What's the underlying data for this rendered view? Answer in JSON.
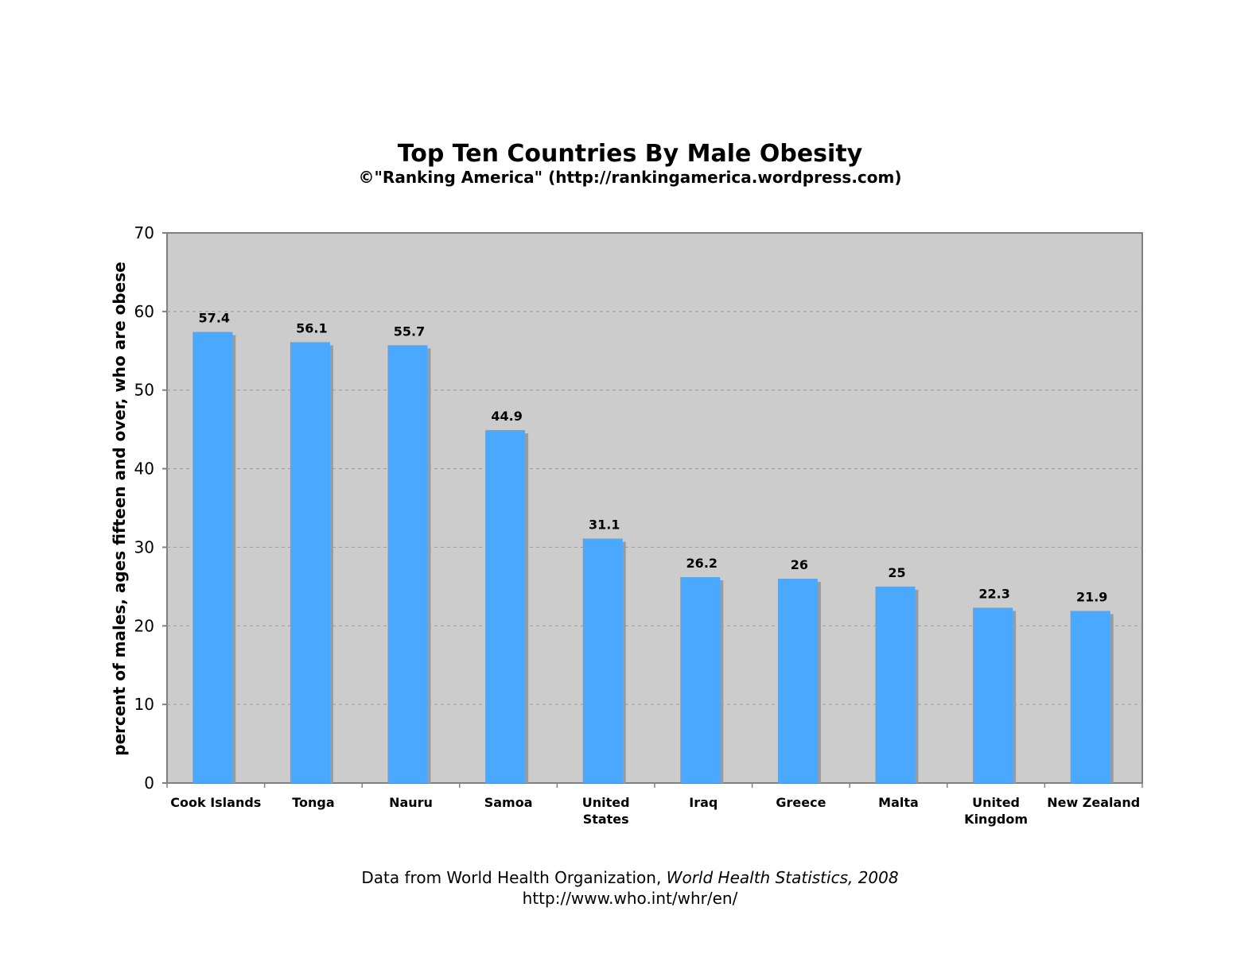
{
  "chart_data": {
    "type": "bar",
    "title": "Top Ten Countries By Male Obesity",
    "subtitle": "©\"Ranking America\" (http://rankingamerica.wordpress.com)",
    "ylabel": "percent of males, ages fifteen and over, who are obese",
    "xlabel": "",
    "categories": [
      [
        "Cook Islands"
      ],
      [
        "Tonga"
      ],
      [
        "Nauru"
      ],
      [
        "Samoa"
      ],
      [
        "United",
        "States"
      ],
      [
        "Iraq"
      ],
      [
        "Greece"
      ],
      [
        "Malta"
      ],
      [
        "United",
        "Kingdom"
      ],
      [
        "New Zealand"
      ]
    ],
    "values": [
      57.4,
      56.1,
      55.7,
      44.9,
      31.1,
      26.2,
      26,
      25,
      22.3,
      21.9
    ],
    "value_labels": [
      "57.4",
      "56.1",
      "55.7",
      "44.9",
      "31.1",
      "26.2",
      "26",
      "25",
      "22.3",
      "21.9"
    ],
    "ylim": [
      0,
      70
    ],
    "yticks": [
      0,
      10,
      20,
      30,
      40,
      50,
      60,
      70
    ],
    "grid": true,
    "colors": {
      "bar": "#4aa8ff",
      "shadow": "#9b9b9b",
      "plot_bg": "#cccccc",
      "frame": "#808080",
      "grid": "#9a9a9a"
    }
  },
  "source": {
    "prefix": "Data from World Health Organization, ",
    "italic": "World Health Statistics, 2008",
    "url": "http://www.who.int/whr/en/"
  }
}
